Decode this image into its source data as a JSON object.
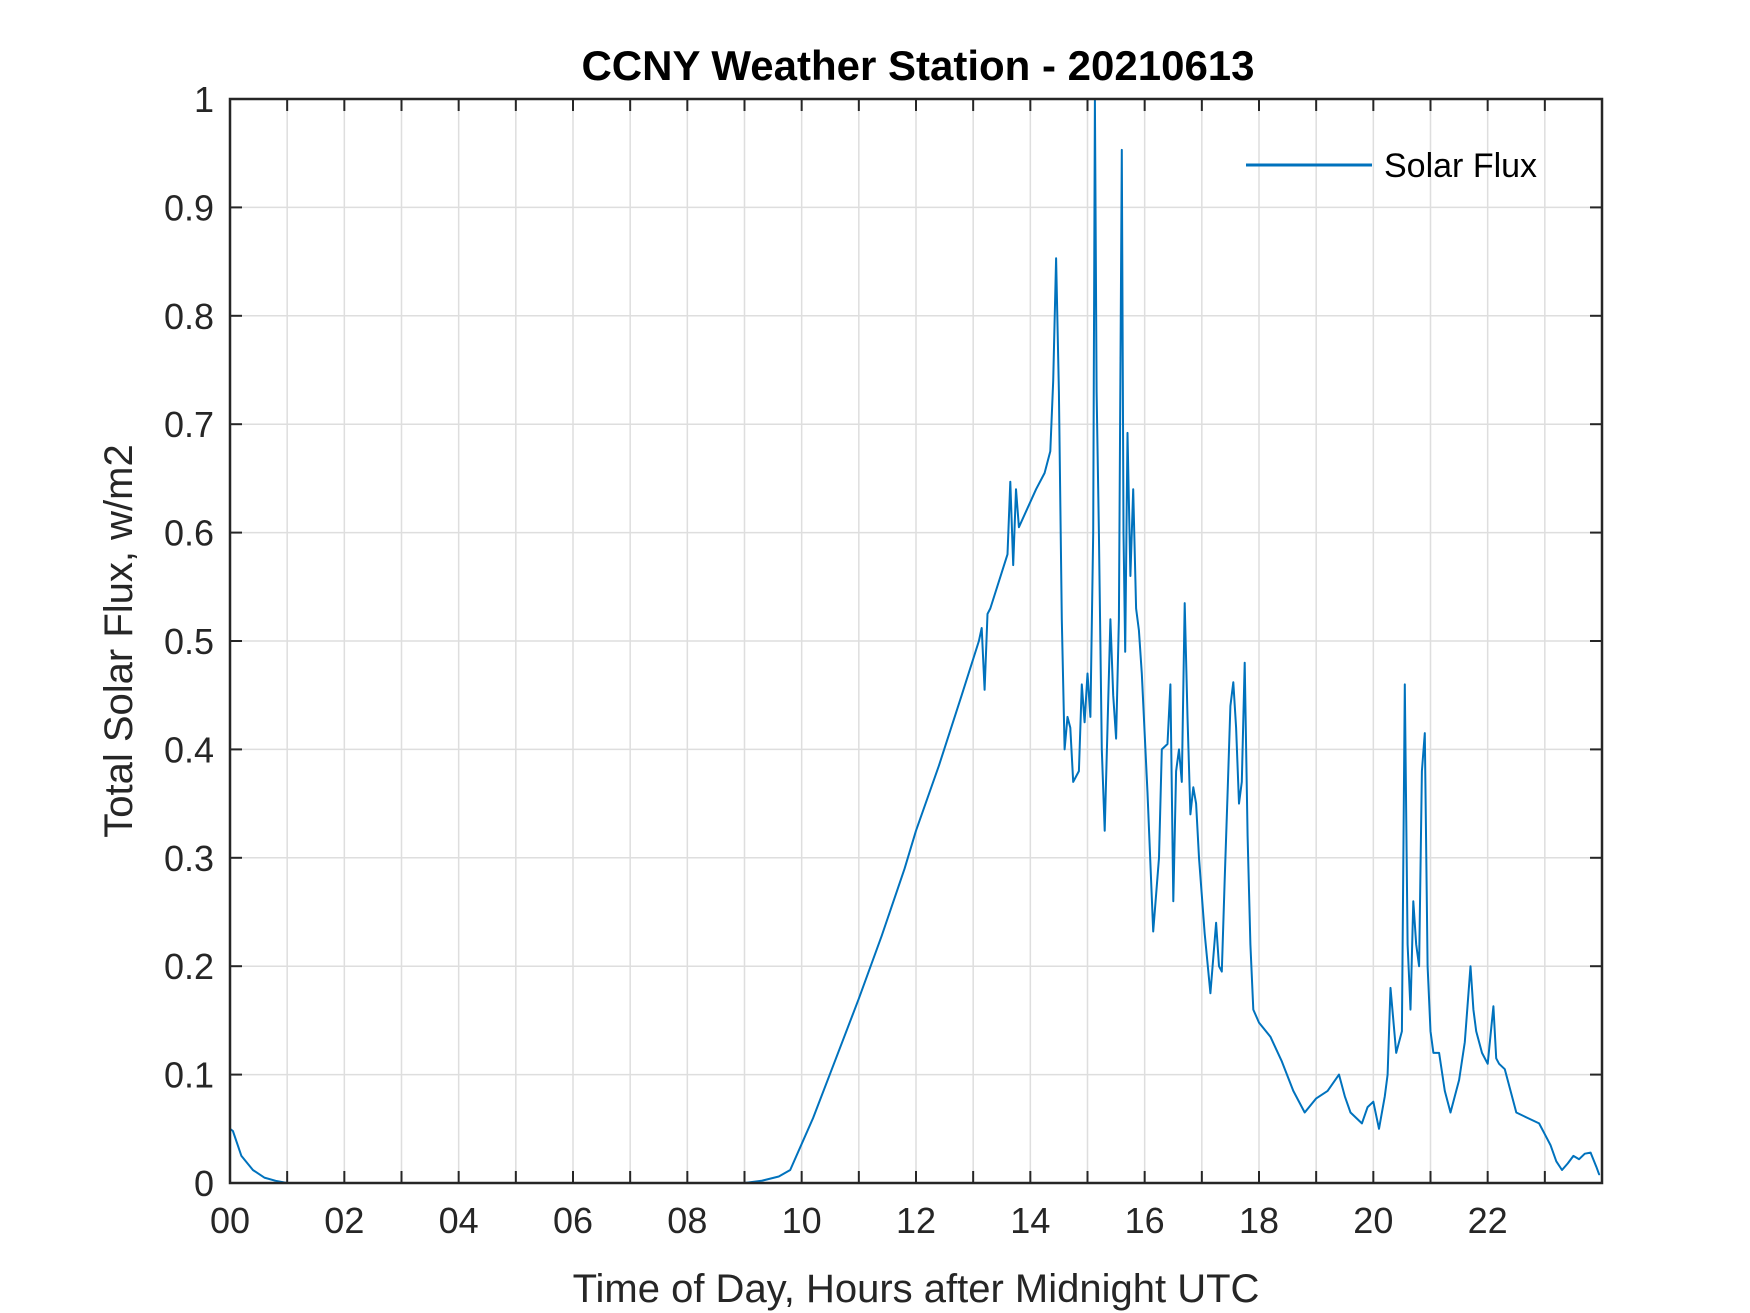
{
  "chart_data": {
    "type": "line",
    "title": "CCNY Weather Station - 20210613",
    "xlabel": "Time of Day, Hours after Midnight UTC",
    "ylabel": "Total Solar Flux, w/m2",
    "xlim": [
      0,
      24
    ],
    "ylim": [
      0,
      1
    ],
    "grid": true,
    "legend_position": "top-right",
    "x_ticks": [
      0,
      2,
      4,
      6,
      8,
      10,
      12,
      14,
      16,
      18,
      20,
      22
    ],
    "x_tick_labels": [
      "00",
      "02",
      "04",
      "06",
      "08",
      "10",
      "12",
      "14",
      "16",
      "18",
      "20",
      "22"
    ],
    "y_ticks": [
      0,
      0.1,
      0.2,
      0.3,
      0.4,
      0.5,
      0.6,
      0.7,
      0.8,
      0.9,
      1
    ],
    "y_tick_labels": [
      "0",
      "0.1",
      "0.2",
      "0.3",
      "0.4",
      "0.5",
      "0.6",
      "0.7",
      "0.8",
      "0.9",
      "1"
    ],
    "series": [
      {
        "name": "Solar Flux",
        "color": "#0072BD",
        "x": [
          0,
          0.05,
          0.2,
          0.4,
          0.6,
          0.8,
          1.0,
          9.0,
          9.3,
          9.6,
          9.8,
          10.2,
          10.6,
          11.0,
          11.4,
          11.8,
          12.0,
          12.4,
          12.8,
          13.1,
          13.15,
          13.2,
          13.25,
          13.3,
          13.6,
          13.65,
          13.7,
          13.75,
          13.8,
          14.1,
          14.25,
          14.35,
          14.4,
          14.45,
          14.5,
          14.55,
          14.6,
          14.65,
          14.7,
          14.75,
          14.85,
          14.9,
          14.95,
          15.0,
          15.05,
          15.1,
          15.13,
          15.16,
          15.2,
          15.25,
          15.3,
          15.35,
          15.4,
          15.45,
          15.5,
          15.55,
          15.6,
          15.63,
          15.66,
          15.7,
          15.75,
          15.8,
          15.85,
          15.9,
          15.95,
          16.05,
          16.15,
          16.25,
          16.3,
          16.4,
          16.45,
          16.5,
          16.55,
          16.6,
          16.65,
          16.7,
          16.75,
          16.8,
          16.85,
          16.9,
          16.95,
          17.05,
          17.15,
          17.25,
          17.3,
          17.35,
          17.4,
          17.45,
          17.5,
          17.55,
          17.6,
          17.65,
          17.7,
          17.75,
          17.8,
          17.85,
          17.9,
          18.0,
          18.2,
          18.4,
          18.6,
          18.8,
          19.0,
          19.2,
          19.4,
          19.5,
          19.6,
          19.8,
          19.9,
          20.0,
          20.1,
          20.2,
          20.25,
          20.3,
          20.4,
          20.5,
          20.55,
          20.6,
          20.65,
          20.7,
          20.75,
          20.8,
          20.85,
          20.9,
          20.95,
          21.0,
          21.05,
          21.15,
          21.25,
          21.35,
          21.5,
          21.6,
          21.7,
          21.75,
          21.8,
          21.9,
          22.0,
          22.1,
          22.15,
          22.2,
          22.3,
          22.5,
          22.7,
          22.9,
          23.0,
          23.1,
          23.2,
          23.3,
          23.4,
          23.5,
          23.6,
          23.7,
          23.8,
          23.9,
          23.95
        ],
        "y": [
          0.05,
          0.048,
          0.025,
          0.012,
          0.005,
          0.002,
          0.0,
          0.0,
          0.002,
          0.006,
          0.012,
          0.06,
          0.115,
          0.17,
          0.228,
          0.29,
          0.325,
          0.385,
          0.45,
          0.5,
          0.512,
          0.455,
          0.525,
          0.53,
          0.58,
          0.647,
          0.57,
          0.64,
          0.605,
          0.64,
          0.655,
          0.675,
          0.74,
          0.853,
          0.73,
          0.52,
          0.4,
          0.43,
          0.42,
          0.37,
          0.38,
          0.46,
          0.425,
          0.47,
          0.43,
          0.6,
          1.0,
          0.73,
          0.6,
          0.4,
          0.325,
          0.42,
          0.52,
          0.45,
          0.41,
          0.52,
          0.953,
          0.6,
          0.49,
          0.692,
          0.56,
          0.64,
          0.53,
          0.51,
          0.47,
          0.36,
          0.232,
          0.3,
          0.4,
          0.405,
          0.46,
          0.26,
          0.38,
          0.4,
          0.37,
          0.535,
          0.43,
          0.34,
          0.365,
          0.35,
          0.3,
          0.23,
          0.175,
          0.24,
          0.2,
          0.195,
          0.28,
          0.36,
          0.44,
          0.462,
          0.42,
          0.35,
          0.37,
          0.48,
          0.32,
          0.22,
          0.16,
          0.148,
          0.135,
          0.112,
          0.085,
          0.065,
          0.078,
          0.085,
          0.1,
          0.08,
          0.065,
          0.055,
          0.07,
          0.075,
          0.05,
          0.08,
          0.1,
          0.18,
          0.12,
          0.14,
          0.46,
          0.22,
          0.16,
          0.26,
          0.22,
          0.2,
          0.38,
          0.415,
          0.2,
          0.14,
          0.12,
          0.12,
          0.085,
          0.065,
          0.095,
          0.13,
          0.2,
          0.16,
          0.14,
          0.12,
          0.11,
          0.163,
          0.115,
          0.11,
          0.105,
          0.065,
          0.06,
          0.055,
          0.045,
          0.035,
          0.02,
          0.012,
          0.018,
          0.025,
          0.022,
          0.027,
          0.028,
          0.015,
          0.008
        ]
      }
    ]
  }
}
